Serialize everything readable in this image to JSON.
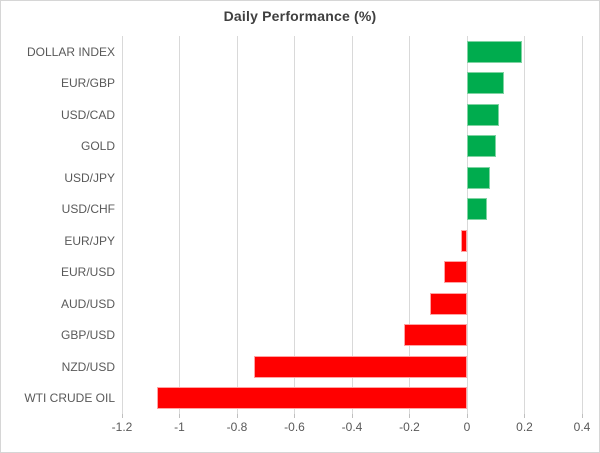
{
  "chart_data": {
    "type": "bar",
    "orientation": "horizontal",
    "title": "Daily Performance (%)",
    "categories": [
      "DOLLAR INDEX",
      "EUR/GBP",
      "USD/CAD",
      "GOLD",
      "USD/JPY",
      "USD/CHF",
      "EUR/JPY",
      "EUR/USD",
      "AUD/USD",
      "GBP/USD",
      "NZD/USD",
      "WTI CRUDE OIL"
    ],
    "values": [
      0.19,
      0.13,
      0.11,
      0.1,
      0.08,
      0.07,
      -0.02,
      -0.08,
      -0.13,
      -0.22,
      -0.74,
      -1.08
    ],
    "xlabel": "",
    "ylabel": "",
    "xlim": [
      -1.2,
      0.4
    ],
    "x_tick_labels": [
      "-1.2",
      "-1",
      "-0.8",
      "-0.6",
      "-0.4",
      "-0.2",
      "0",
      "0.2",
      "0.4"
    ],
    "x_ticks": [
      -1.2,
      -1.0,
      -0.8,
      -0.6,
      -0.4,
      -0.2,
      0,
      0.2,
      0.4
    ],
    "grid": true,
    "legend": false,
    "colors": {
      "positive_fill": "#00AC4E",
      "positive_border": "#7FD3A2",
      "negative_fill": "#FF0000",
      "negative_border": "#FFA3A3",
      "gridline": "#D9D9D9",
      "tick": "#BFBFBF",
      "axis_label": "#595959",
      "title": "#3F3F3F",
      "frame_border": "#D6D6D6"
    }
  }
}
